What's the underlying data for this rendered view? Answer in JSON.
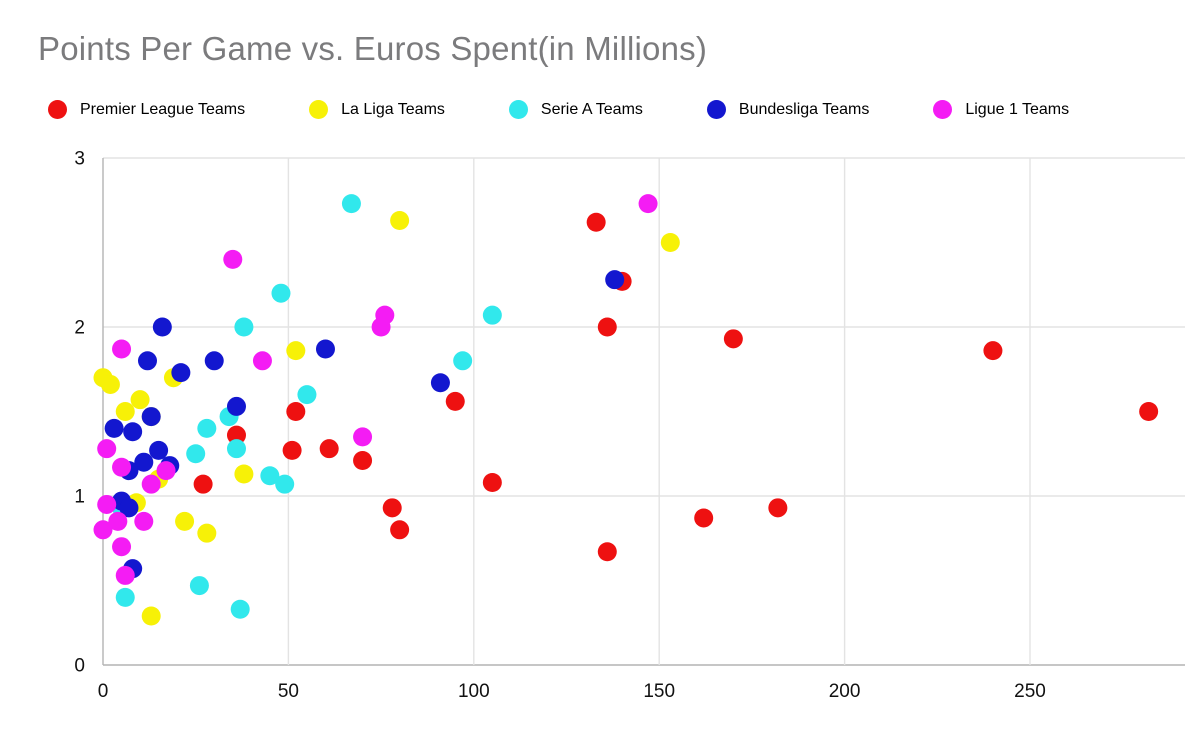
{
  "title": "Points Per Game vs. Euros Spent(in Millions)",
  "colors": {
    "title_gray": "#7b7b7d",
    "gridline": "#e3e3e3",
    "axis_line": "#b3b3b3",
    "tick_label": "#111111"
  },
  "chart_data": {
    "type": "scatter",
    "title": "Points Per Game vs. Euros Spent(in Millions)",
    "xlabel": "",
    "ylabel": "",
    "xlim": [
      0,
      290
    ],
    "ylim": [
      0,
      3
    ],
    "x_ticks": [
      0,
      50,
      100,
      150,
      200,
      250
    ],
    "y_ticks": [
      0,
      1,
      2,
      3
    ],
    "grid": true,
    "legend_position": "top",
    "point_radius": 9.5,
    "series": [
      {
        "name": "Premier League Teams",
        "color": "#ee1111",
        "points": [
          [
            133,
            2.62
          ],
          [
            140,
            2.27
          ],
          [
            136,
            2.0
          ],
          [
            170,
            1.93
          ],
          [
            240,
            1.86
          ],
          [
            282,
            1.5
          ],
          [
            95,
            1.56
          ],
          [
            52,
            1.5
          ],
          [
            36,
            1.36
          ],
          [
            51,
            1.27
          ],
          [
            61,
            1.28
          ],
          [
            70,
            1.21
          ],
          [
            27,
            1.07
          ],
          [
            105,
            1.08
          ],
          [
            78,
            0.93
          ],
          [
            80,
            0.8
          ],
          [
            162,
            0.87
          ],
          [
            182,
            0.93
          ],
          [
            136,
            0.67
          ]
        ]
      },
      {
        "name": "La Liga Teams",
        "color": "#f7f107",
        "points": [
          [
            80,
            2.63
          ],
          [
            153,
            2.5
          ],
          [
            52,
            1.86
          ],
          [
            0,
            1.7
          ],
          [
            2,
            1.66
          ],
          [
            19,
            1.7
          ],
          [
            10,
            1.57
          ],
          [
            6,
            1.5
          ],
          [
            13,
            1.47
          ],
          [
            38,
            1.13
          ],
          [
            15,
            1.1
          ],
          [
            9,
            0.96
          ],
          [
            22,
            0.85
          ],
          [
            28,
            0.78
          ],
          [
            13,
            0.29
          ]
        ]
      },
      {
        "name": "Serie A Teams",
        "color": "#31e8ec",
        "points": [
          [
            67,
            2.73
          ],
          [
            48,
            2.2
          ],
          [
            105,
            2.07
          ],
          [
            38,
            2.0
          ],
          [
            97,
            1.8
          ],
          [
            55,
            1.6
          ],
          [
            34,
            1.47
          ],
          [
            28,
            1.4
          ],
          [
            36,
            1.28
          ],
          [
            25,
            1.25
          ],
          [
            45,
            1.12
          ],
          [
            49,
            1.07
          ],
          [
            5,
            0.93
          ],
          [
            6,
            0.4
          ],
          [
            26,
            0.47
          ],
          [
            37,
            0.33
          ]
        ]
      },
      {
        "name": "Bundesliga Teams",
        "color": "#1317cf",
        "points": [
          [
            138,
            2.28
          ],
          [
            16,
            2.0
          ],
          [
            60,
            1.87
          ],
          [
            12,
            1.8
          ],
          [
            30,
            1.8
          ],
          [
            21,
            1.73
          ],
          [
            91,
            1.67
          ],
          [
            36,
            1.53
          ],
          [
            13,
            1.47
          ],
          [
            3,
            1.4
          ],
          [
            8,
            1.38
          ],
          [
            15,
            1.27
          ],
          [
            11,
            1.2
          ],
          [
            18,
            1.18
          ],
          [
            7,
            1.15
          ],
          [
            5,
            0.97
          ],
          [
            7,
            0.93
          ],
          [
            8,
            0.57
          ]
        ]
      },
      {
        "name": "Ligue 1 Teams",
        "color": "#f41cf4",
        "points": [
          [
            147,
            2.73
          ],
          [
            35,
            2.4
          ],
          [
            76,
            2.07
          ],
          [
            75,
            2.0
          ],
          [
            5,
            1.87
          ],
          [
            43,
            1.8
          ],
          [
            70,
            1.35
          ],
          [
            1,
            1.28
          ],
          [
            5,
            1.17
          ],
          [
            17,
            1.15
          ],
          [
            13,
            1.07
          ],
          [
            1,
            0.95
          ],
          [
            4,
            0.85
          ],
          [
            11,
            0.85
          ],
          [
            0,
            0.8
          ],
          [
            5,
            0.7
          ],
          [
            6,
            0.53
          ]
        ]
      }
    ]
  }
}
